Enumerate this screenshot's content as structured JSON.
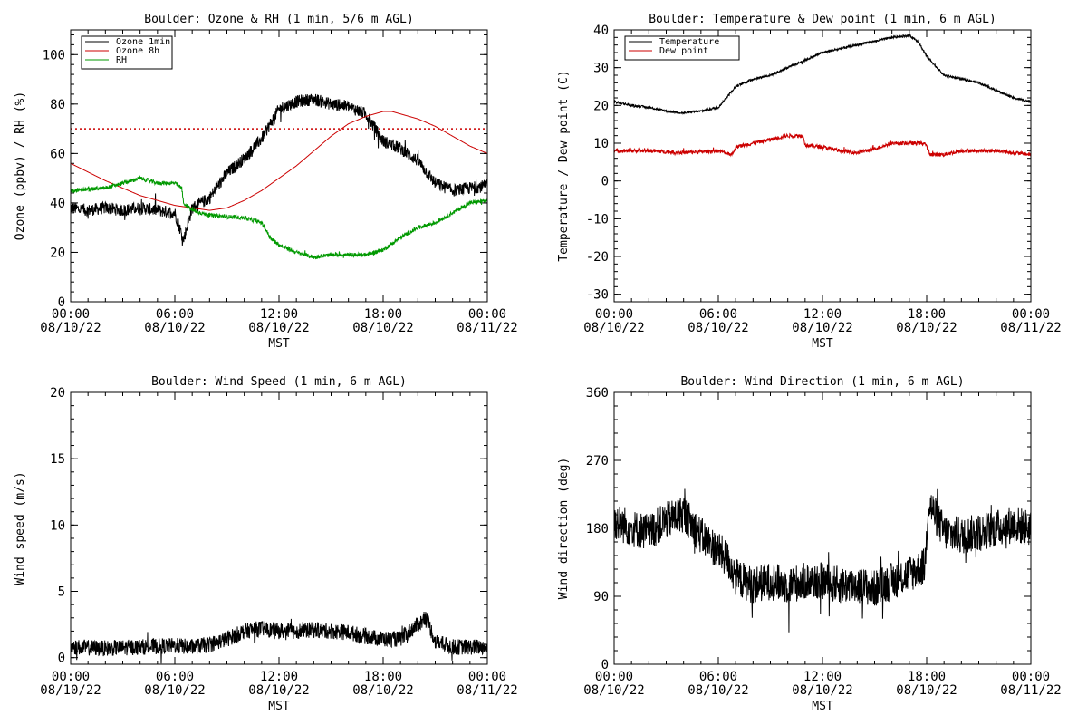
{
  "xaxis": {
    "label": "MST",
    "ticks": [
      {
        "hour": 0,
        "time": "00:00",
        "date": "08/10/22"
      },
      {
        "hour": 6,
        "time": "06:00",
        "date": "08/10/22"
      },
      {
        "hour": 12,
        "time": "12:00",
        "date": "08/10/22"
      },
      {
        "hour": 18,
        "time": "18:00",
        "date": "08/10/22"
      },
      {
        "hour": 24,
        "time": "00:00",
        "date": "08/11/22"
      }
    ],
    "range_hours": [
      0,
      24
    ]
  },
  "chart_data": [
    {
      "id": "ozone",
      "type": "line",
      "title": "Boulder: Ozone & RH (1 min, 5/6 m AGL)",
      "xlabel": "MST",
      "ylabel": "Ozone (ppbv) / RH (%)",
      "ylim": [
        0,
        110
      ],
      "yticks": [
        0,
        20,
        40,
        60,
        80,
        100
      ],
      "reference_line": {
        "y": 70,
        "color": "#cc0000",
        "style": "dotted"
      },
      "legend": {
        "position": "top-left",
        "entries": [
          {
            "label": "Ozone 1min",
            "color": "#000000"
          },
          {
            "label": "Ozone 8h",
            "color": "#cc0000"
          },
          {
            "label": "RH",
            "color": "#009900"
          }
        ]
      },
      "series": [
        {
          "name": "Ozone 1min",
          "color": "#000000",
          "noise": 2.5,
          "x": [
            0,
            1,
            2,
            3,
            4,
            5,
            6,
            6.5,
            7,
            8,
            9,
            10,
            11,
            12,
            13,
            14,
            15,
            16,
            17,
            18,
            19,
            20,
            21,
            22,
            23,
            24
          ],
          "y": [
            38,
            37,
            38,
            37,
            38,
            37,
            36,
            25,
            38,
            42,
            52,
            58,
            66,
            78,
            81,
            82,
            80,
            79,
            76,
            65,
            62,
            57,
            48,
            45,
            46,
            47
          ]
        },
        {
          "name": "Ozone 8h",
          "color": "#cc0000",
          "noise": 0,
          "x": [
            0,
            2,
            4,
            6,
            7,
            8,
            9,
            10,
            11,
            12,
            13,
            14,
            15,
            16,
            17,
            18,
            18.5,
            19,
            20,
            21,
            22,
            23,
            24
          ],
          "y": [
            56,
            49,
            43,
            39,
            38,
            37,
            38,
            41,
            45,
            50,
            55,
            61,
            67,
            72,
            75,
            77,
            77,
            76,
            74,
            71,
            67,
            63,
            60
          ]
        },
        {
          "name": "RH",
          "color": "#009900",
          "noise": 0.8,
          "x": [
            0,
            2,
            3,
            4,
            5,
            6,
            6.4,
            6.5,
            7,
            8,
            10,
            11,
            11.5,
            12,
            13,
            14,
            15,
            16,
            17,
            18,
            19,
            20,
            21,
            22,
            23,
            24
          ],
          "y": [
            45,
            46,
            48,
            50,
            48,
            48,
            46,
            40,
            37,
            35,
            34,
            32,
            26,
            23,
            20,
            18,
            19,
            19,
            19,
            21,
            26,
            30,
            32,
            36,
            40,
            41
          ]
        }
      ]
    },
    {
      "id": "temp",
      "type": "line",
      "title": "Boulder: Temperature & Dew point (1 min, 6 m AGL)",
      "xlabel": "MST",
      "ylabel": "Temperature / Dew point (C)",
      "ylim": [
        -32,
        40
      ],
      "yticks": [
        -30,
        -20,
        -10,
        0,
        10,
        20,
        30,
        40
      ],
      "legend": {
        "position": "top-left",
        "entries": [
          {
            "label": "Temperature",
            "color": "#000000"
          },
          {
            "label": "Dew point",
            "color": "#cc0000"
          }
        ]
      },
      "series": [
        {
          "name": "Temperature",
          "color": "#000000",
          "noise": 0.3,
          "x": [
            0,
            1,
            2,
            3,
            4,
            5,
            6,
            7,
            8,
            9,
            10,
            11,
            12,
            13,
            14,
            15,
            16,
            17,
            17.5,
            18,
            19,
            20,
            21,
            22,
            23,
            24
          ],
          "y": [
            21,
            20,
            19.5,
            18.5,
            18,
            18.5,
            19.5,
            25,
            27,
            28,
            30,
            32,
            34,
            35,
            36,
            37,
            38,
            38.5,
            37,
            33,
            28,
            27,
            26,
            24,
            22,
            21
          ]
        },
        {
          "name": "Dew point",
          "color": "#cc0000",
          "noise": 0.5,
          "x": [
            0,
            2,
            4,
            6,
            6.8,
            7,
            8,
            9,
            10,
            10.9,
            11,
            12,
            13,
            14,
            15,
            16,
            17,
            17.9,
            18.2,
            19,
            20,
            21,
            22,
            23,
            24
          ],
          "y": [
            8,
            8,
            7.5,
            8,
            7,
            9,
            10,
            11,
            12,
            12,
            9.5,
            9,
            8,
            7.5,
            8.5,
            10,
            10,
            10,
            7,
            7,
            8,
            8,
            8,
            7.5,
            7
          ]
        }
      ]
    },
    {
      "id": "wspd",
      "type": "line",
      "title": "Boulder: Wind Speed (1 min, 6 m AGL)",
      "xlabel": "MST",
      "ylabel": "Wind speed (m/s)",
      "ylim": [
        -0.5,
        20
      ],
      "yticks": [
        0,
        5,
        10,
        15,
        20
      ],
      "series": [
        {
          "name": "",
          "color": "#000000",
          "noise": 0.6,
          "x": [
            0,
            2,
            4,
            6,
            7,
            8,
            9,
            10,
            11,
            12,
            13,
            14,
            15,
            16,
            17,
            18,
            19,
            20,
            20.5,
            21,
            22,
            23,
            24
          ],
          "y": [
            0.8,
            0.7,
            0.8,
            0.9,
            0.8,
            1.0,
            1.4,
            2.0,
            2.2,
            2.0,
            2.0,
            2.1,
            2.0,
            1.9,
            1.6,
            1.4,
            1.4,
            2.5,
            3.0,
            1.2,
            0.8,
            0.8,
            0.8
          ]
        }
      ]
    },
    {
      "id": "wdir",
      "type": "line",
      "title": "Boulder: Wind Direction (1 min, 6 m AGL)",
      "xlabel": "MST",
      "ylabel": "Wind direction (deg)",
      "ylim": [
        0,
        360
      ],
      "yticks": [
        0,
        90,
        180,
        270,
        360
      ],
      "series": [
        {
          "name": "",
          "color": "#000000",
          "noise": 25,
          "x": [
            0,
            1,
            2,
            3,
            4,
            5,
            6,
            6.5,
            7,
            8,
            9,
            10,
            11,
            12,
            13,
            14,
            15,
            16,
            17,
            17.9,
            18.1,
            19,
            20,
            21,
            22,
            23,
            24
          ],
          "y": [
            190,
            180,
            175,
            190,
            200,
            170,
            150,
            140,
            115,
            105,
            110,
            105,
            110,
            110,
            105,
            105,
            100,
            110,
            120,
            130,
            215,
            175,
            170,
            175,
            180,
            185,
            180
          ]
        }
      ]
    }
  ]
}
